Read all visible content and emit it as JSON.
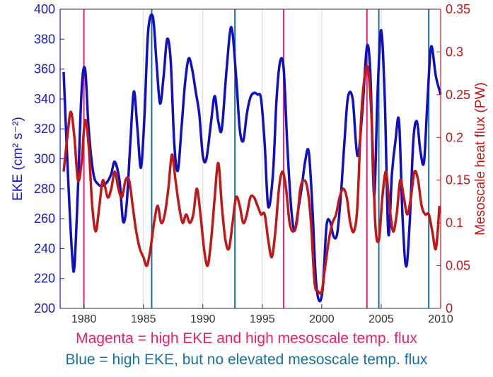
{
  "colors": {
    "eke_series": "#1010c0",
    "flux_series": "#c01818",
    "left_axis": "#1a1ac8",
    "right_axis": "#c01818",
    "magenta_lines": "#e0207a",
    "blue_lines": "#1a6fa0",
    "caption_magenta": "#e8206f",
    "caption_blue": "#1a6fa0",
    "grid": "#d8d8d8"
  },
  "captions": {
    "magenta": "Magenta = high EKE and high mesoscale temp. flux",
    "blue": "Blue = high EKE, but no elevated mesoscale temp. flux"
  },
  "chart_data": {
    "type": "line",
    "grid": "vertical",
    "x": {
      "label": "",
      "range": [
        1978,
        2010
      ],
      "ticks": [
        1980,
        1985,
        1990,
        1995,
        2000,
        2005,
        2010
      ]
    },
    "y_left": {
      "label": "EKE (cm² s⁻²)",
      "range": [
        200,
        400
      ],
      "ticks": [
        200,
        220,
        240,
        260,
        280,
        300,
        320,
        340,
        360,
        380,
        400
      ]
    },
    "y_right": {
      "label": "Mesoscale heat flux (PW)",
      "range": [
        0,
        0.35
      ],
      "ticks": [
        "0",
        "0.05",
        "0.1",
        "0.15",
        "0.2",
        "0.25",
        "0.3",
        "0.35"
      ]
    },
    "magenta_lines": [
      1980,
      1996.8,
      2003.8
    ],
    "blue_lines": [
      1985.7,
      1992.7,
      2004.8,
      2009.0
    ],
    "series": [
      {
        "axis": "left",
        "x": [
          1978.3,
          1978.6,
          1979.0,
          1979.2,
          1979.5,
          1979.8,
          1980.1,
          1980.4,
          1980.8,
          1981.2,
          1981.6,
          1982.0,
          1982.3,
          1982.6,
          1983.0,
          1983.3,
          1983.6,
          1983.9,
          1984.2,
          1984.5,
          1984.8,
          1985.1,
          1985.4,
          1985.8,
          1986.1,
          1986.4,
          1986.7,
          1987.0,
          1987.3,
          1987.6,
          1987.9,
          1988.2,
          1988.5,
          1988.8,
          1989.1,
          1989.4,
          1989.7,
          1990.0,
          1990.3,
          1990.7,
          1991.0,
          1991.3,
          1991.6,
          1992.0,
          1992.4,
          1992.8,
          1993.1,
          1993.4,
          1993.7,
          1994.0,
          1994.3,
          1994.6,
          1994.9,
          1995.2,
          1995.5,
          1995.9,
          1996.2,
          1996.5,
          1996.8,
          1997.1,
          1997.4,
          1997.7,
          1998.0,
          1998.3,
          1998.6,
          1998.9,
          1999.2,
          1999.5,
          1999.8,
          2000.1,
          2000.4,
          2000.7,
          2001.0,
          2001.3,
          2001.6,
          2001.9,
          2002.2,
          2002.6,
          2003.0,
          2003.4,
          2003.8,
          2004.1,
          2004.4,
          2004.7,
          2005.0,
          2005.3,
          2005.6,
          2005.9,
          2006.2,
          2006.5,
          2006.8,
          2007.1,
          2007.4,
          2007.7,
          2008.0,
          2008.3,
          2008.6,
          2008.9,
          2009.2,
          2009.6,
          2010.0
        ],
        "values": [
          358,
          300,
          237,
          228,
          280,
          345,
          360,
          320,
          290,
          283,
          282,
          285,
          290,
          298,
          285,
          258,
          270,
          310,
          345,
          320,
          294,
          330,
          385,
          395,
          365,
          337,
          355,
          380,
          365,
          310,
          292,
          320,
          350,
          367,
          360,
          345,
          330,
          302,
          300,
          325,
          342,
          325,
          320,
          360,
          388,
          355,
          320,
          312,
          330,
          341,
          344,
          343,
          340,
          310,
          268,
          290,
          340,
          365,
          360,
          310,
          270,
          252,
          265,
          280,
          298,
          305,
          270,
          220,
          205,
          215,
          255,
          258,
          248,
          250,
          275,
          310,
          341,
          340,
          302,
          330,
          375,
          355,
          275,
          345,
          386,
          340,
          250,
          290,
          312,
          325,
          260,
          228,
          258,
          312,
          325,
          305,
          298,
          340,
          375,
          355,
          343
        ]
      },
      {
        "axis": "right",
        "x": [
          1978.3,
          1978.6,
          1978.9,
          1979.2,
          1979.5,
          1979.8,
          1980.1,
          1980.4,
          1980.7,
          1981.0,
          1981.3,
          1981.6,
          1982.0,
          1982.3,
          1982.6,
          1982.9,
          1983.2,
          1983.5,
          1983.8,
          1984.1,
          1984.4,
          1984.7,
          1985.0,
          1985.3,
          1985.6,
          1985.9,
          1986.2,
          1986.5,
          1986.8,
          1987.1,
          1987.4,
          1987.7,
          1988.0,
          1988.3,
          1988.6,
          1988.9,
          1989.2,
          1989.5,
          1989.8,
          1990.1,
          1990.4,
          1990.7,
          1991.0,
          1991.3,
          1991.6,
          1991.9,
          1992.2,
          1992.5,
          1992.8,
          1993.1,
          1993.4,
          1993.7,
          1994.0,
          1994.3,
          1994.6,
          1994.9,
          1995.2,
          1995.5,
          1995.8,
          1996.1,
          1996.4,
          1996.7,
          1997.0,
          1997.3,
          1997.6,
          1997.9,
          1998.2,
          1998.5,
          1998.8,
          1999.1,
          1999.4,
          1999.7,
          2000.0,
          2000.3,
          2000.6,
          2000.9,
          2001.2,
          2001.5,
          2001.8,
          2002.1,
          2002.4,
          2002.7,
          2003.0,
          2003.3,
          2003.6,
          2003.9,
          2004.2,
          2004.5,
          2004.8,
          2005.1,
          2005.4,
          2005.7,
          2006.0,
          2006.3,
          2006.6,
          2006.9,
          2007.2,
          2007.5,
          2007.8,
          2008.1,
          2008.4,
          2008.7,
          2009.0,
          2009.3,
          2009.6,
          2009.9
        ],
        "values": [
          0.16,
          0.2,
          0.23,
          0.2,
          0.15,
          0.17,
          0.22,
          0.19,
          0.12,
          0.09,
          0.12,
          0.15,
          0.13,
          0.14,
          0.16,
          0.14,
          0.13,
          0.15,
          0.15,
          0.12,
          0.09,
          0.07,
          0.06,
          0.05,
          0.07,
          0.1,
          0.12,
          0.1,
          0.11,
          0.14,
          0.18,
          0.15,
          0.12,
          0.1,
          0.11,
          0.1,
          0.11,
          0.14,
          0.11,
          0.07,
          0.05,
          0.08,
          0.13,
          0.17,
          0.12,
          0.08,
          0.07,
          0.1,
          0.13,
          0.12,
          0.1,
          0.11,
          0.13,
          0.13,
          0.12,
          0.11,
          0.11,
          0.08,
          0.06,
          0.09,
          0.14,
          0.16,
          0.14,
          0.1,
          0.09,
          0.1,
          0.14,
          0.15,
          0.14,
          0.1,
          0.03,
          0.02,
          0.02,
          0.05,
          0.08,
          0.1,
          0.11,
          0.13,
          0.14,
          0.13,
          0.1,
          0.09,
          0.12,
          0.22,
          0.27,
          0.28,
          0.22,
          0.1,
          0.08,
          0.13,
          0.16,
          0.12,
          0.09,
          0.11,
          0.15,
          0.13,
          0.11,
          0.13,
          0.16,
          0.15,
          0.12,
          0.11,
          0.11,
          0.09,
          0.07,
          0.12
        ]
      }
    ]
  }
}
